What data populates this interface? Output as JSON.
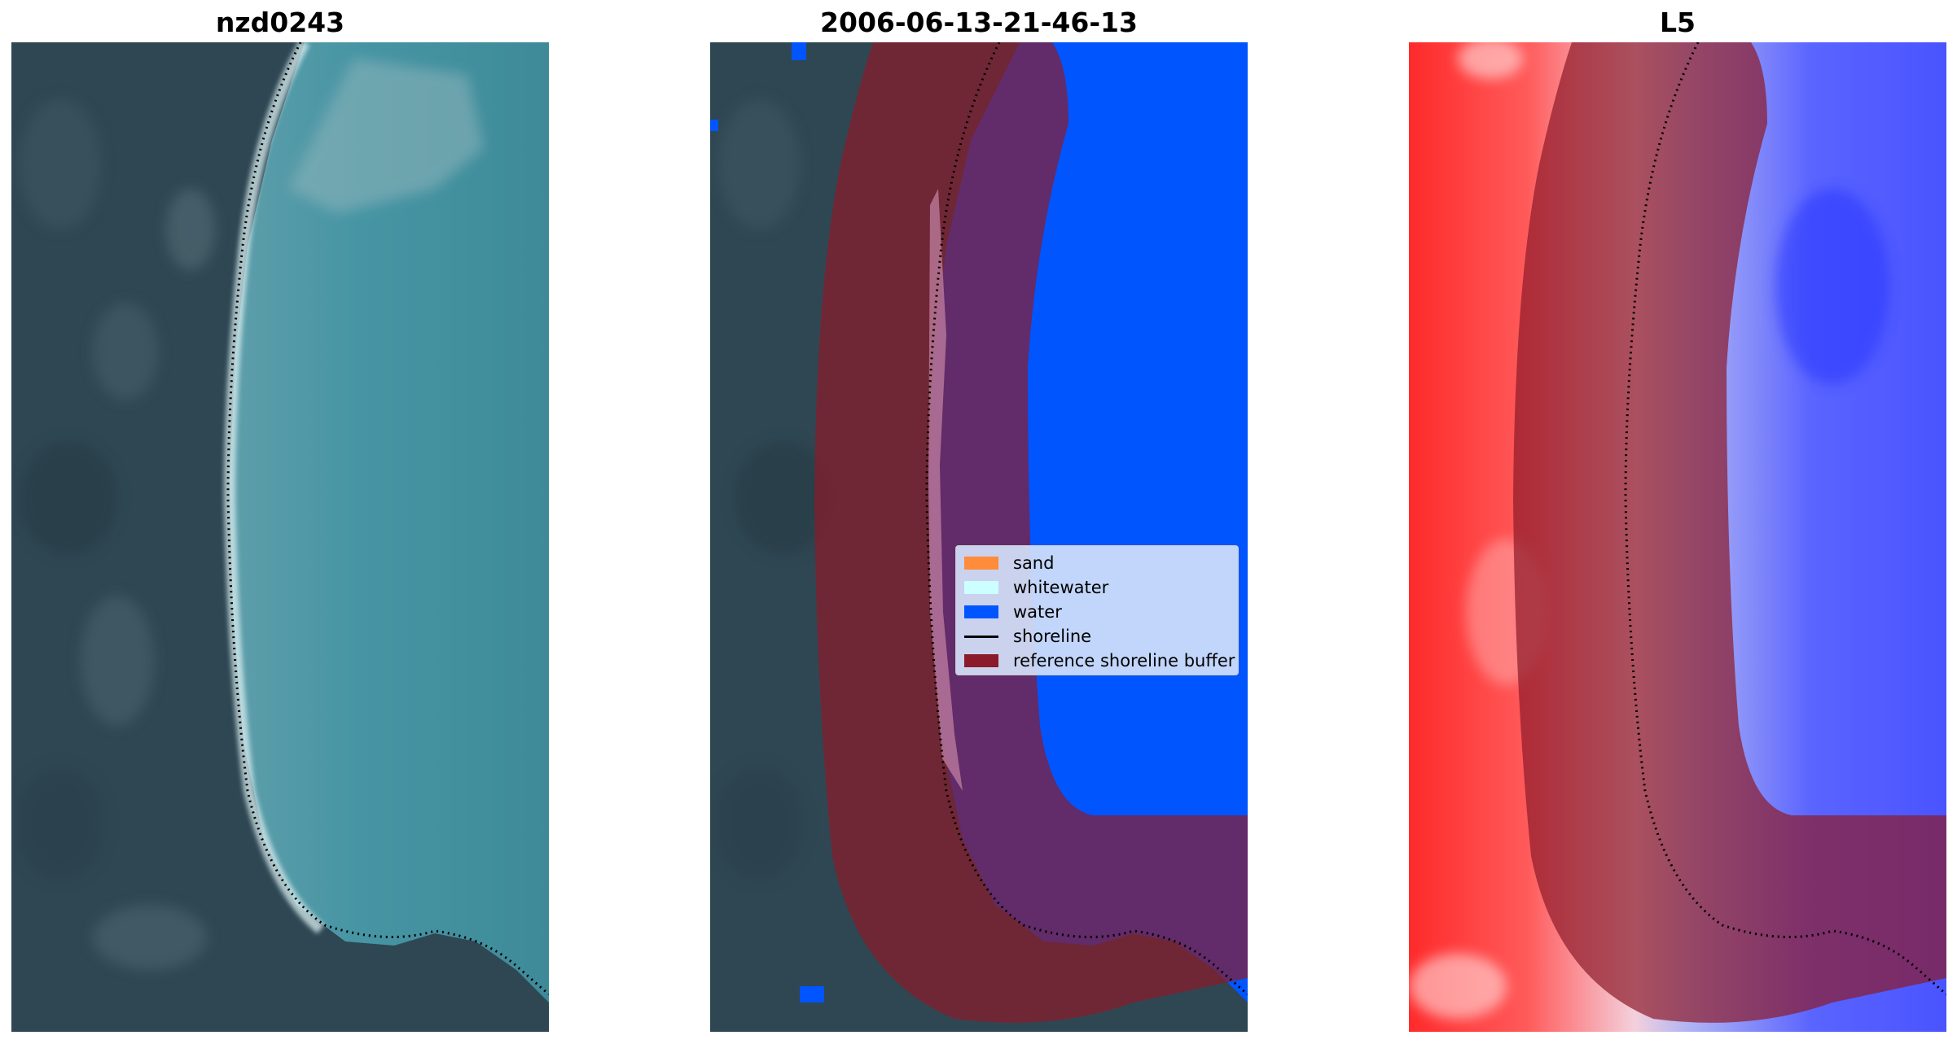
{
  "panels": [
    {
      "title": "nzd0243"
    },
    {
      "title": "2006-06-13-21-46-13"
    },
    {
      "title": "L5"
    }
  ],
  "legend": {
    "entries": [
      {
        "label": "sand",
        "color": "#ff8c3a",
        "kind": "patch"
      },
      {
        "label": "whitewater",
        "color": "#ccffff",
        "kind": "patch"
      },
      {
        "label": "water",
        "color": "#0055ff",
        "kind": "patch"
      },
      {
        "label": "shoreline",
        "color": "#000000",
        "kind": "line"
      },
      {
        "label": "reference shoreline buffer",
        "color": "#8b1a2a",
        "kind": "patch"
      }
    ]
  },
  "colors": {
    "land": "#2d4452",
    "sea_rgb": "#3f8c9c",
    "water_class": "#0055ff",
    "buffer": "#8b1a2a",
    "index_positive": "#ff2020",
    "index_negative": "#4050ff"
  }
}
